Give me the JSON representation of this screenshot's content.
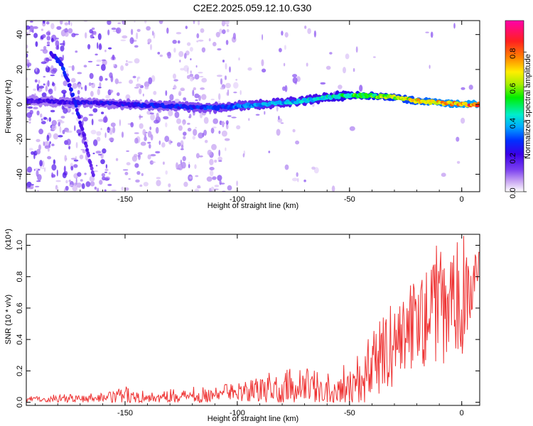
{
  "title": "C2E2.2025.059.12.10.G30",
  "chart_data": [
    {
      "type": "heatmap",
      "xlabel": "Height of straight line (km)",
      "ylabel": "Frequency (Hz)",
      "xlim": [
        -194,
        8
      ],
      "ylim": [
        -50,
        48
      ],
      "xticks": [
        -150,
        -100,
        -50,
        0
      ],
      "yticks": [
        -40,
        -20,
        0,
        20,
        40
      ],
      "colorbar": {
        "label": "Normalized spectral amplitude",
        "range": [
          0,
          0.98
        ],
        "ticks": [
          "0.0",
          "0.2",
          "0.4",
          "0.6",
          "0.8"
        ],
        "colormap": [
          "#ffffff",
          "#c9a6f2",
          "#7a3ff0",
          "#3a00e8",
          "#0030ff",
          "#00aaff",
          "#00eecc",
          "#00ee00",
          "#aaee00",
          "#ffee00",
          "#ff8800",
          "#ff2020",
          "#ff00aa"
        ]
      },
      "ridge_frequency": {
        "x": [
          -190,
          -170,
          -150,
          -130,
          -110,
          -100,
          -90,
          -80,
          -70,
          -60,
          -52,
          -40,
          -30,
          -20,
          -10,
          0,
          8
        ],
        "y": [
          2,
          1,
          0,
          -1,
          -2,
          -1,
          0,
          1,
          2,
          4,
          5,
          5,
          4,
          2,
          1,
          0,
          0
        ],
        "peak_amplitude": [
          0.25,
          0.28,
          0.3,
          0.33,
          0.36,
          0.4,
          0.45,
          0.48,
          0.5,
          0.55,
          0.6,
          0.68,
          0.72,
          0.8,
          0.86,
          0.9,
          0.92
        ]
      },
      "chirp_frequency": {
        "x": [
          -183,
          -178,
          -175,
          -172,
          -168,
          -164
        ],
        "y": [
          30,
          22,
          12,
          0,
          -20,
          -42
        ],
        "peak_amplitude": [
          0.25,
          0.35,
          0.3,
          0.3,
          0.22,
          0.2
        ]
      }
    },
    {
      "type": "line",
      "xlabel": "Height of straight line (km)",
      "ylabel": "SNR (10 * v/v)",
      "yscale_label": "(x10⁴)",
      "xlim": [
        -194,
        8
      ],
      "ylim": [
        -0.02,
        1.07
      ],
      "xticks": [
        -150,
        -100,
        -50,
        0
      ],
      "yticks": [
        0.0,
        0.2,
        0.4,
        0.6,
        0.8,
        1.0
      ],
      "line_color": "#ee3333",
      "series": [
        {
          "x": [
            -194,
            -180,
            -160,
            -150,
            -140,
            -120,
            -100,
            -90,
            -80,
            -70,
            -60,
            -50,
            -45,
            -40,
            -35,
            -30,
            -25,
            -20,
            -15,
            -10,
            -5,
            0,
            8
          ],
          "mean": [
            0.02,
            0.02,
            0.025,
            0.04,
            0.03,
            0.04,
            0.05,
            0.07,
            0.08,
            0.08,
            0.08,
            0.1,
            0.14,
            0.2,
            0.3,
            0.38,
            0.45,
            0.5,
            0.55,
            0.58,
            0.6,
            0.62,
            0.85
          ],
          "max": [
            0.04,
            0.05,
            0.06,
            0.12,
            0.07,
            0.1,
            0.12,
            0.16,
            0.23,
            0.22,
            0.2,
            0.25,
            0.35,
            0.45,
            0.62,
            0.75,
            0.85,
            0.9,
            0.98,
            1.05,
            1.04,
            1.07,
            1.0
          ]
        }
      ]
    }
  ]
}
